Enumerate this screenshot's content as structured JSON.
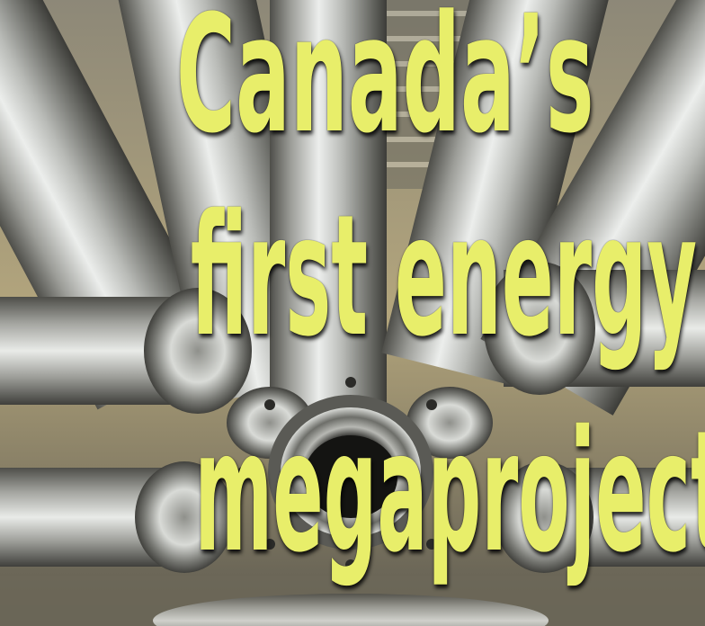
{
  "headline": {
    "line1": "Canada’s",
    "line2": "first energy",
    "line3": "megaproject"
  },
  "colors": {
    "headline_text": "#e8ee6a",
    "headline_shadow": "#000000",
    "metal_light": "#e6e8e6",
    "metal_mid": "#a9aba7",
    "metal_dark": "#4f4f4a",
    "background_warm": "#b3a57c"
  },
  "image": {
    "subject": "metal-pipes-icon"
  }
}
